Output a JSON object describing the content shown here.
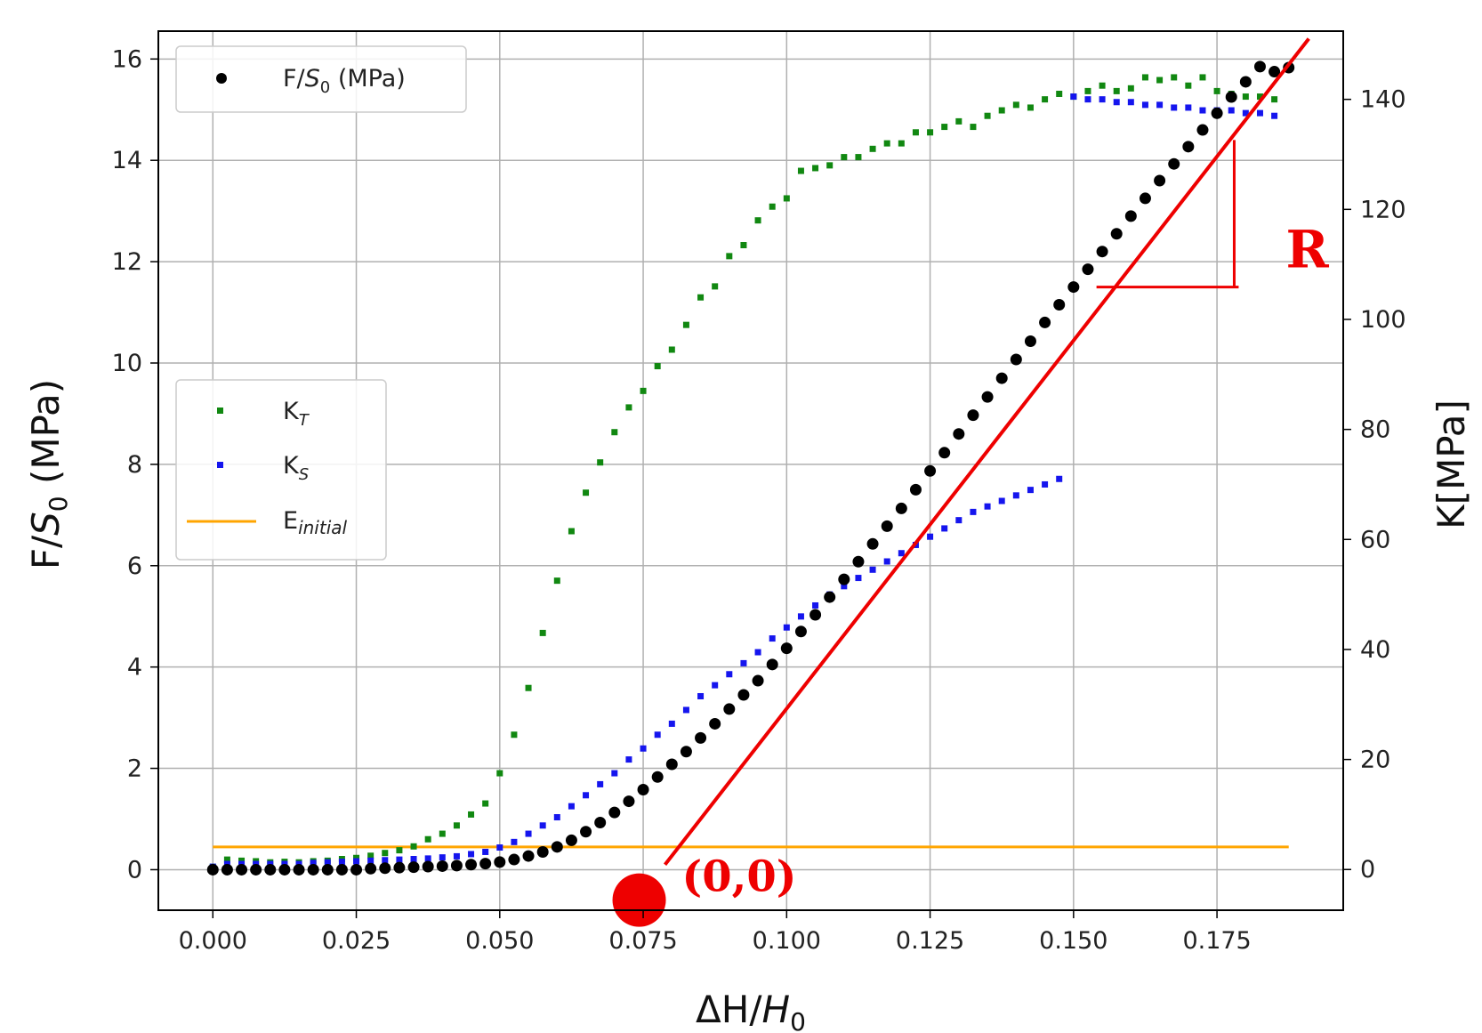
{
  "chart_data": {
    "type": "scatter",
    "xlabel": {
      "main": "ΔH/",
      "italic": "H",
      "sub": "0"
    },
    "ylabel_left": {
      "main": "F/",
      "italic": "S",
      "sub": "0",
      "tail": " (MPa)"
    },
    "ylabel_right": "K[MPa]",
    "xlim": [
      -0.0095,
      0.197
    ],
    "ylim_left": [
      -0.8,
      16.55
    ],
    "ylim_right": [
      -7.4,
      152.4
    ],
    "x_ticks": [
      0.0,
      0.025,
      0.05,
      0.075,
      0.1,
      0.125,
      0.15,
      0.175
    ],
    "x_tick_labels": [
      "0.000",
      "0.025",
      "0.050",
      "0.075",
      "0.100",
      "0.125",
      "0.150",
      "0.175"
    ],
    "y_left_ticks": [
      0,
      2,
      4,
      6,
      8,
      10,
      12,
      14,
      16
    ],
    "y_left_tick_labels": [
      "0",
      "2",
      "4",
      "6",
      "8",
      "10",
      "12",
      "14",
      "16"
    ],
    "y_right_ticks": [
      0,
      20,
      40,
      60,
      80,
      100,
      120,
      140
    ],
    "y_right_tick_labels": [
      "0",
      "20",
      "40",
      "60",
      "80",
      "100",
      "120",
      "140"
    ],
    "grid": true,
    "legends": [
      {
        "placement": "top-left",
        "entries": [
          {
            "series": "stress",
            "main": "F/",
            "italic": "S",
            "sub": "0",
            "tail": " (MPa)"
          }
        ]
      },
      {
        "placement": "center-left",
        "entries": [
          {
            "series": "kt",
            "main": "K",
            "sub": "T"
          },
          {
            "series": "ks",
            "main": "K",
            "sub": "S"
          },
          {
            "series": "einitial",
            "main": "E",
            "sub": "initial"
          }
        ]
      }
    ],
    "series": [
      {
        "id": "stress",
        "axis": "left",
        "color": "#000000",
        "marker": "circle",
        "x": [
          0.0,
          0.0025,
          0.005,
          0.0075,
          0.01,
          0.0125,
          0.015,
          0.0175,
          0.02,
          0.0225,
          0.025,
          0.0275,
          0.03,
          0.0325,
          0.035,
          0.0375,
          0.04,
          0.0425,
          0.045,
          0.0475,
          0.05,
          0.0525,
          0.055,
          0.0575,
          0.06,
          0.0625,
          0.065,
          0.0675,
          0.07,
          0.0725,
          0.075,
          0.0775,
          0.08,
          0.0825,
          0.085,
          0.0875,
          0.09,
          0.0925,
          0.095,
          0.0975,
          0.1,
          0.1025,
          0.105,
          0.1075,
          0.11,
          0.1125,
          0.115,
          0.1175,
          0.12,
          0.1225,
          0.125,
          0.1275,
          0.13,
          0.1325,
          0.135,
          0.1375,
          0.14,
          0.1425,
          0.145,
          0.1475,
          0.15,
          0.1525,
          0.155,
          0.1575,
          0.16,
          0.1625,
          0.165,
          0.1675,
          0.17,
          0.1725,
          0.175,
          0.1775,
          0.18,
          0.1825,
          0.185,
          0.1875
        ],
        "y": [
          0.0,
          0.0,
          0.0,
          0.0,
          0.0,
          0.0,
          0.0,
          0.0,
          0.0,
          0.0,
          0.0,
          0.02,
          0.03,
          0.04,
          0.05,
          0.06,
          0.07,
          0.08,
          0.1,
          0.12,
          0.15,
          0.2,
          0.27,
          0.35,
          0.45,
          0.58,
          0.75,
          0.93,
          1.13,
          1.35,
          1.58,
          1.83,
          2.08,
          2.33,
          2.6,
          2.88,
          3.17,
          3.45,
          3.73,
          4.05,
          4.37,
          4.7,
          5.03,
          5.38,
          5.73,
          6.08,
          6.43,
          6.78,
          7.13,
          7.5,
          7.87,
          8.23,
          8.6,
          8.97,
          9.33,
          9.7,
          10.07,
          10.43,
          10.8,
          11.15,
          11.5,
          11.85,
          12.2,
          12.55,
          12.9,
          13.25,
          13.6,
          13.93,
          14.27,
          14.6,
          14.93,
          15.25,
          15.55,
          15.85,
          15.75,
          15.83
        ]
      },
      {
        "id": "kt",
        "axis": "right",
        "color": "#118811",
        "marker": "square",
        "x": [
          0.0,
          0.0025,
          0.005,
          0.0075,
          0.01,
          0.0125,
          0.015,
          0.0175,
          0.02,
          0.0225,
          0.025,
          0.0275,
          0.03,
          0.0325,
          0.035,
          0.0375,
          0.04,
          0.0425,
          0.045,
          0.0475,
          0.05,
          0.0525,
          0.055,
          0.0575,
          0.06,
          0.0625,
          0.065,
          0.0675,
          0.07,
          0.0725,
          0.075,
          0.0775,
          0.08,
          0.0825,
          0.085,
          0.0875,
          0.09,
          0.0925,
          0.095,
          0.0975,
          0.1,
          0.1025,
          0.105,
          0.1075,
          0.11,
          0.1125,
          0.115,
          0.1175,
          0.12,
          0.1225,
          0.125,
          0.1275,
          0.13,
          0.1325,
          0.135,
          0.1375,
          0.14,
          0.1425,
          0.145,
          0.1475,
          0.15,
          0.1525,
          0.155,
          0.1575,
          0.16,
          0.1625,
          0.165,
          0.1675,
          0.17,
          0.1725,
          0.175,
          0.1775,
          0.18,
          0.1825,
          0.185
        ],
        "y": [
          0.5,
          1.8,
          1.6,
          1.5,
          1.3,
          1.4,
          1.3,
          1.5,
          1.6,
          1.9,
          2.1,
          2.5,
          3.0,
          3.5,
          4.2,
          5.5,
          6.5,
          8.0,
          10.0,
          12.0,
          17.5,
          24.5,
          33.0,
          43.0,
          52.5,
          61.5,
          68.5,
          74.0,
          79.5,
          84.0,
          87.0,
          91.5,
          94.5,
          99.0,
          104.0,
          106.0,
          111.5,
          113.5,
          118.0,
          120.5,
          122.0,
          127.0,
          127.5,
          128.0,
          129.5,
          129.5,
          131.0,
          132.0,
          132.0,
          134.0,
          134.0,
          135.0,
          136.0,
          135.0,
          137.0,
          138.0,
          139.0,
          138.5,
          140.0,
          141.0,
          140.5,
          141.5,
          142.5,
          141.5,
          142.0,
          144.0,
          143.5,
          144.0,
          142.5,
          144.0,
          141.5,
          141.0,
          140.5,
          140.5,
          140.0
        ]
      },
      {
        "id": "ks",
        "axis": "right",
        "color": "#1515ee",
        "marker": "square",
        "x": [
          0.0,
          0.0025,
          0.005,
          0.0075,
          0.01,
          0.0125,
          0.015,
          0.0175,
          0.02,
          0.0225,
          0.025,
          0.0275,
          0.03,
          0.0325,
          0.035,
          0.0375,
          0.04,
          0.0425,
          0.045,
          0.0475,
          0.05,
          0.0525,
          0.055,
          0.0575,
          0.06,
          0.0625,
          0.065,
          0.0675,
          0.07,
          0.0725,
          0.075,
          0.0775,
          0.08,
          0.0825,
          0.085,
          0.0875,
          0.09,
          0.0925,
          0.095,
          0.0975,
          0.1,
          0.1025,
          0.105,
          0.1075,
          0.11,
          0.1125,
          0.115,
          0.1175,
          0.12,
          0.1225,
          0.125,
          0.1275,
          0.13,
          0.1325,
          0.135,
          0.1375,
          0.14,
          0.1425,
          0.145,
          0.1475,
          0.15,
          0.1525,
          0.155,
          0.1575,
          0.16,
          0.1625,
          0.165,
          0.1675,
          0.17,
          0.1725,
          0.175,
          0.1775,
          0.18,
          0.1825,
          0.185
        ],
        "y": [
          0.5,
          1.0,
          1.0,
          1.0,
          1.0,
          1.0,
          1.0,
          1.2,
          1.3,
          1.4,
          1.5,
          1.6,
          1.7,
          1.8,
          1.9,
          2.0,
          2.2,
          2.4,
          2.8,
          3.2,
          4.0,
          5.0,
          6.5,
          8.0,
          9.5,
          11.5,
          13.5,
          15.5,
          17.5,
          20.0,
          22.0,
          24.5,
          26.5,
          29.0,
          31.5,
          33.5,
          35.5,
          37.5,
          39.5,
          42.0,
          44.0,
          46.0,
          48.0,
          50.0,
          51.5,
          53.0,
          54.5,
          56.0,
          57.5,
          59.0,
          60.5,
          62.0,
          63.5,
          65.0,
          66.0,
          67.0,
          68.0,
          69.0,
          70.0,
          71.0,
          140.5,
          140.0,
          140.0,
          139.5,
          139.5,
          139.0,
          139.0,
          138.5,
          138.5,
          138.0,
          138.0,
          138.0,
          137.5,
          137.5,
          137.0
        ]
      },
      {
        "id": "einitial",
        "axis": "left",
        "color": "#ffa500",
        "marker": "line",
        "x": [
          0.0,
          0.1875
        ],
        "y": [
          0.45,
          0.45
        ]
      }
    ],
    "annotations": {
      "fit_line": {
        "color": "#ee0000",
        "x": [
          0.0788,
          0.191
        ],
        "y": [
          0.1,
          16.4
        ]
      },
      "origin_point": {
        "x": 0.0743,
        "y": -0.6,
        "label": "(0,0)"
      },
      "slope_triangle": {
        "x1": 0.154,
        "x2": 0.178,
        "y1": 11.5,
        "y2": 14.4,
        "label": "R"
      }
    }
  }
}
